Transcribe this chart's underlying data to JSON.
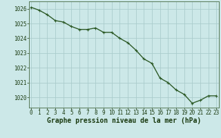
{
  "x": [
    0,
    1,
    2,
    3,
    4,
    5,
    6,
    7,
    8,
    9,
    10,
    11,
    12,
    13,
    14,
    15,
    16,
    17,
    18,
    19,
    20,
    21,
    22,
    23
  ],
  "y": [
    1026.1,
    1025.9,
    1025.6,
    1025.2,
    1025.1,
    1024.8,
    1024.6,
    1024.6,
    1024.7,
    1024.4,
    1024.4,
    1024.0,
    1023.7,
    1023.2,
    1022.6,
    1022.3,
    1021.3,
    1021.0,
    1020.5,
    1020.2,
    1019.6,
    1019.8,
    1020.1,
    1020.1
  ],
  "line_color": "#2d5a27",
  "marker": "+",
  "marker_color": "#2d5a27",
  "bg_color": "#cce8e8",
  "grid_color": "#aacccc",
  "xlabel": "Graphe pression niveau de la mer (hPa)",
  "xlabel_color": "#1a3a10",
  "tick_color": "#1a3a10",
  "ylim": [
    1019.3,
    1026.5
  ],
  "yticks": [
    1020,
    1021,
    1022,
    1023,
    1024,
    1025,
    1026
  ],
  "xticks": [
    0,
    1,
    2,
    3,
    4,
    5,
    6,
    7,
    8,
    9,
    10,
    11,
    12,
    13,
    14,
    15,
    16,
    17,
    18,
    19,
    20,
    21,
    22,
    23
  ],
  "tick_fontsize": 5.5,
  "xlabel_fontsize": 7.0,
  "linewidth": 1.0,
  "markersize": 3.0
}
